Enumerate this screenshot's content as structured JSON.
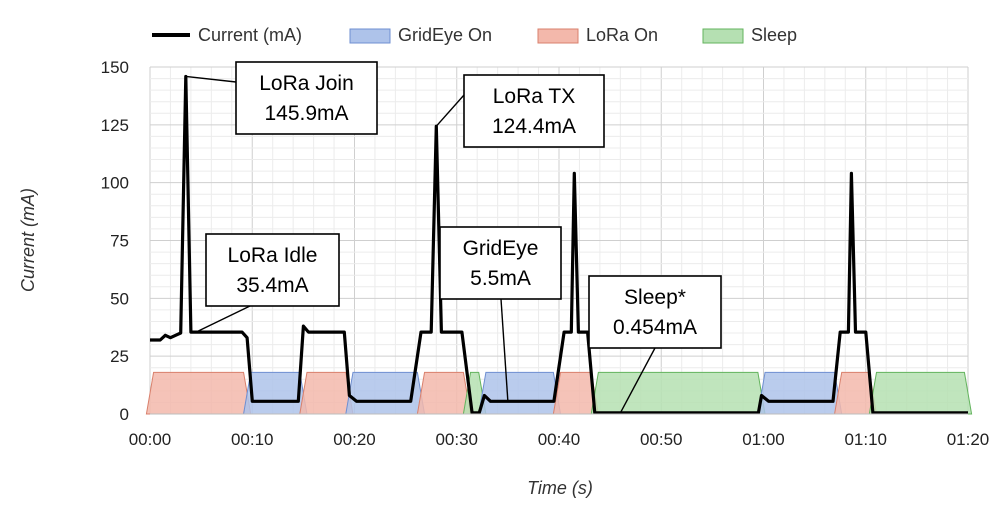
{
  "chart_data": {
    "type": "line",
    "xlabel": "Time (s)",
    "ylabel": "Current (mA)",
    "xlim": [
      0,
      80
    ],
    "ylim": [
      0,
      150
    ],
    "x_ticks": [
      0,
      10,
      20,
      30,
      40,
      50,
      60,
      70,
      80
    ],
    "x_tick_labels": [
      "00:00",
      "00:10",
      "00:20",
      "00:30",
      "00:40",
      "00:50",
      "01:00",
      "01:10",
      "01:20"
    ],
    "y_ticks": [
      0,
      25,
      50,
      75,
      100,
      125,
      150
    ],
    "y_tick_labels": [
      "0",
      "25",
      "50",
      "75",
      "100",
      "125",
      "150"
    ],
    "grid": true,
    "legend_position": "top",
    "legend": [
      {
        "name": "Current (mA)",
        "kind": "line",
        "color": "#000000"
      },
      {
        "name": "GridEye On",
        "kind": "area",
        "color": "#aec3ea",
        "edge": "#6f8fd1"
      },
      {
        "name": "LoRa On",
        "kind": "area",
        "color": "#f3b8ab",
        "edge": "#d9806c"
      },
      {
        "name": "Sleep",
        "kind": "area",
        "color": "#b5e0b2",
        "edge": "#63b35d"
      }
    ],
    "series": [
      {
        "name": "Current (mA)",
        "color": "#000000",
        "points": [
          [
            0,
            32
          ],
          [
            1,
            32
          ],
          [
            1.5,
            34
          ],
          [
            2,
            33
          ],
          [
            2.5,
            34
          ],
          [
            3,
            35
          ],
          [
            3.5,
            145.9
          ],
          [
            4,
            35.4
          ],
          [
            9,
            35.4
          ],
          [
            9.5,
            33
          ],
          [
            10,
            5.5
          ],
          [
            14.5,
            5.5
          ],
          [
            15,
            38
          ],
          [
            15.5,
            35.4
          ],
          [
            19,
            35.4
          ],
          [
            19.5,
            8
          ],
          [
            20.2,
            5.5
          ],
          [
            25.5,
            5.5
          ],
          [
            26.5,
            35.4
          ],
          [
            27.5,
            35.4
          ],
          [
            28,
            124.4
          ],
          [
            28.5,
            35.4
          ],
          [
            30.5,
            35.4
          ],
          [
            31.5,
            0.454
          ],
          [
            32.2,
            0.454
          ],
          [
            32.7,
            8
          ],
          [
            33.3,
            5.5
          ],
          [
            39.5,
            5.5
          ],
          [
            40.5,
            35.4
          ],
          [
            41.2,
            35.4
          ],
          [
            41.5,
            104
          ],
          [
            41.9,
            35.4
          ],
          [
            42.8,
            35.4
          ],
          [
            43.5,
            0.454
          ],
          [
            59.5,
            0.454
          ],
          [
            59.8,
            8
          ],
          [
            60.5,
            5.5
          ],
          [
            66.8,
            5.5
          ],
          [
            67.5,
            35.4
          ],
          [
            68.3,
            35.4
          ],
          [
            68.6,
            104
          ],
          [
            69,
            35.4
          ],
          [
            70,
            35.4
          ],
          [
            70.7,
            0.454
          ],
          [
            80,
            0.454
          ]
        ]
      }
    ],
    "state_bands": [
      {
        "state": "LoRa On",
        "from": 0,
        "to": 9.5,
        "level": 18
      },
      {
        "state": "GridEye On",
        "from": 9.5,
        "to": 15,
        "level": 18
      },
      {
        "state": "LoRa On",
        "from": 15,
        "to": 19.5,
        "level": 18
      },
      {
        "state": "GridEye On",
        "from": 19.5,
        "to": 26.5,
        "level": 18
      },
      {
        "state": "LoRa On",
        "from": 26.5,
        "to": 31,
        "level": 18
      },
      {
        "state": "Sleep",
        "from": 31,
        "to": 32.5,
        "level": 18
      },
      {
        "state": "GridEye On",
        "from": 32.5,
        "to": 39.8,
        "level": 18
      },
      {
        "state": "LoRa On",
        "from": 39.8,
        "to": 43.5,
        "level": 18
      },
      {
        "state": "Sleep",
        "from": 43.5,
        "to": 59.8,
        "level": 18
      },
      {
        "state": "GridEye On",
        "from": 59.8,
        "to": 67.3,
        "level": 18
      },
      {
        "state": "LoRa On",
        "from": 67.3,
        "to": 70.7,
        "level": 18
      },
      {
        "state": "Sleep",
        "from": 70.7,
        "to": 80,
        "level": 18
      }
    ],
    "annotations": [
      {
        "lines": [
          "LoRa Join",
          "145.9mA"
        ],
        "target": [
          3.5,
          145.9
        ]
      },
      {
        "lines": [
          "LoRa TX",
          "124.4mA"
        ],
        "target": [
          28,
          124.4
        ]
      },
      {
        "lines": [
          "LoRa Idle",
          "35.4mA"
        ],
        "target": [
          4.5,
          35.4
        ]
      },
      {
        "lines": [
          "GridEye",
          "5.5mA"
        ],
        "target": [
          35,
          5.5
        ]
      },
      {
        "lines": [
          "Sleep*",
          "0.454mA"
        ],
        "target": [
          46,
          0.454
        ]
      }
    ]
  }
}
